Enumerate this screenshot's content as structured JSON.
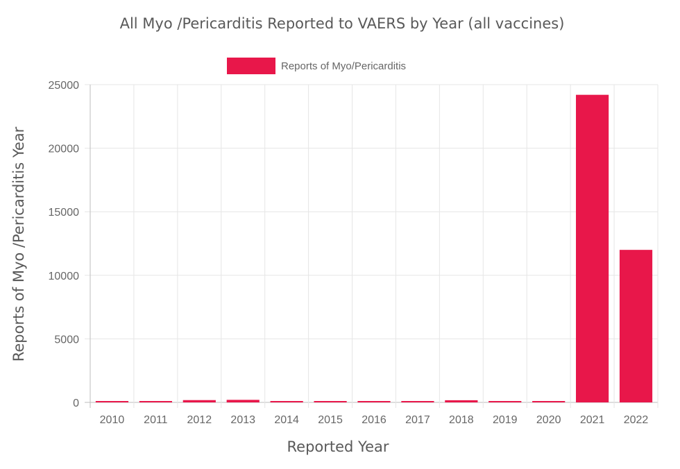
{
  "chart_data": {
    "type": "bar",
    "title": "All Myo /Pericarditis Reported to VAERS by Year (all vaccines)",
    "xlabel": "Reported Year",
    "ylabel": "Reports of Myo /Pericarditis Year",
    "categories": [
      "2010",
      "2011",
      "2012",
      "2013",
      "2014",
      "2015",
      "2016",
      "2017",
      "2018",
      "2019",
      "2020",
      "2021",
      "2022"
    ],
    "series": [
      {
        "name": "Reports of Myo/Pericarditis",
        "color": "#e8174a",
        "values": [
          80,
          90,
          180,
          200,
          90,
          70,
          60,
          80,
          170,
          90,
          100,
          24200,
          12000
        ]
      }
    ],
    "ylim": [
      0,
      25000
    ],
    "yticks": [
      "0",
      "5000",
      "10000",
      "15000",
      "20000",
      "25000"
    ],
    "grid": true,
    "legend_position": "top-center"
  }
}
